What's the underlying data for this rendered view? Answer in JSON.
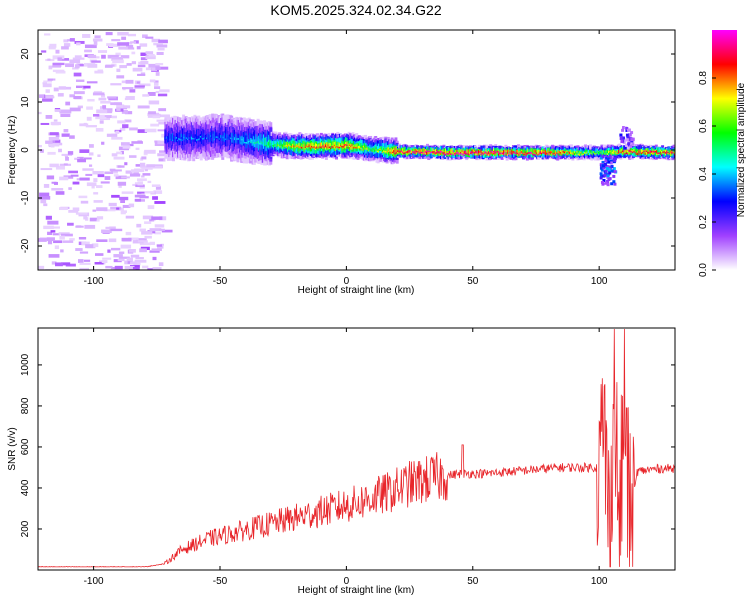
{
  "title": "KOM5.2025.324.02.34.G22",
  "chart_data": [
    {
      "type": "heatmap",
      "title": "KOM5.2025.324.02.34.G22",
      "xlabel": "Height of straight line (km)",
      "ylabel": "Frequency (Hz)",
      "xlim": [
        -122,
        130
      ],
      "ylim": [
        -25,
        25
      ],
      "x_ticks": [
        -100,
        -50,
        0,
        50,
        100
      ],
      "y_ticks": [
        -20,
        -10,
        0,
        10,
        20
      ],
      "grid": false,
      "colorbar": {
        "label": "Normalized spectral amplitude",
        "range": [
          0,
          1
        ],
        "ticks": [
          0.0,
          0.2,
          0.4,
          0.6,
          0.8
        ],
        "colormap": [
          "#ffffff",
          "#a040ff",
          "#0000ff",
          "#00ffff",
          "#00ff00",
          "#ffff00",
          "#ff0000",
          "#ff00ff"
        ]
      },
      "ridge": {
        "description_points_x": [
          -72,
          -60,
          -50,
          -40,
          -30,
          -20,
          -10,
          0,
          10,
          20,
          40,
          60,
          80,
          100,
          110,
          130
        ],
        "frequency_hz": [
          2.5,
          2.5,
          2.8,
          2.0,
          1.2,
          0.8,
          0.8,
          1.0,
          0.2,
          -0.3,
          -0.5,
          -0.5,
          -0.5,
          -0.5,
          -0.3,
          -0.5
        ],
        "amplitude": [
          0.35,
          0.35,
          0.35,
          0.4,
          0.55,
          0.8,
          0.85,
          0.85,
          0.6,
          0.9,
          0.95,
          0.95,
          0.9,
          0.6,
          0.9,
          0.85
        ]
      },
      "noise_region_x": [
        -122,
        -73
      ]
    },
    {
      "type": "line",
      "xlabel": "Height of straight line (km)",
      "ylabel": "SNR (v/v)",
      "xlim": [
        -122,
        130
      ],
      "ylim": [
        0,
        1180
      ],
      "x_ticks": [
        -100,
        -50,
        0,
        50,
        100
      ],
      "y_ticks": [
        200,
        400,
        600,
        800,
        1000
      ],
      "grid": false,
      "series": [
        {
          "color": "#e8262b",
          "x": [
            -122,
            -110,
            -100,
            -90,
            -80,
            -72,
            -65,
            -55,
            -45,
            -35,
            -25,
            -15,
            -5,
            5,
            15,
            25,
            35,
            45,
            55,
            65,
            75,
            85,
            95,
            100,
            102,
            104,
            106,
            108,
            110,
            112,
            115,
            120,
            125,
            130
          ],
          "values": [
            15,
            15,
            15,
            15,
            15,
            30,
            100,
            150,
            180,
            210,
            240,
            270,
            300,
            330,
            370,
            420,
            450,
            470,
            470,
            480,
            490,
            500,
            500,
            500,
            700,
            180,
            900,
            150,
            850,
            200,
            480,
            490,
            495,
            495
          ]
        }
      ]
    }
  ]
}
